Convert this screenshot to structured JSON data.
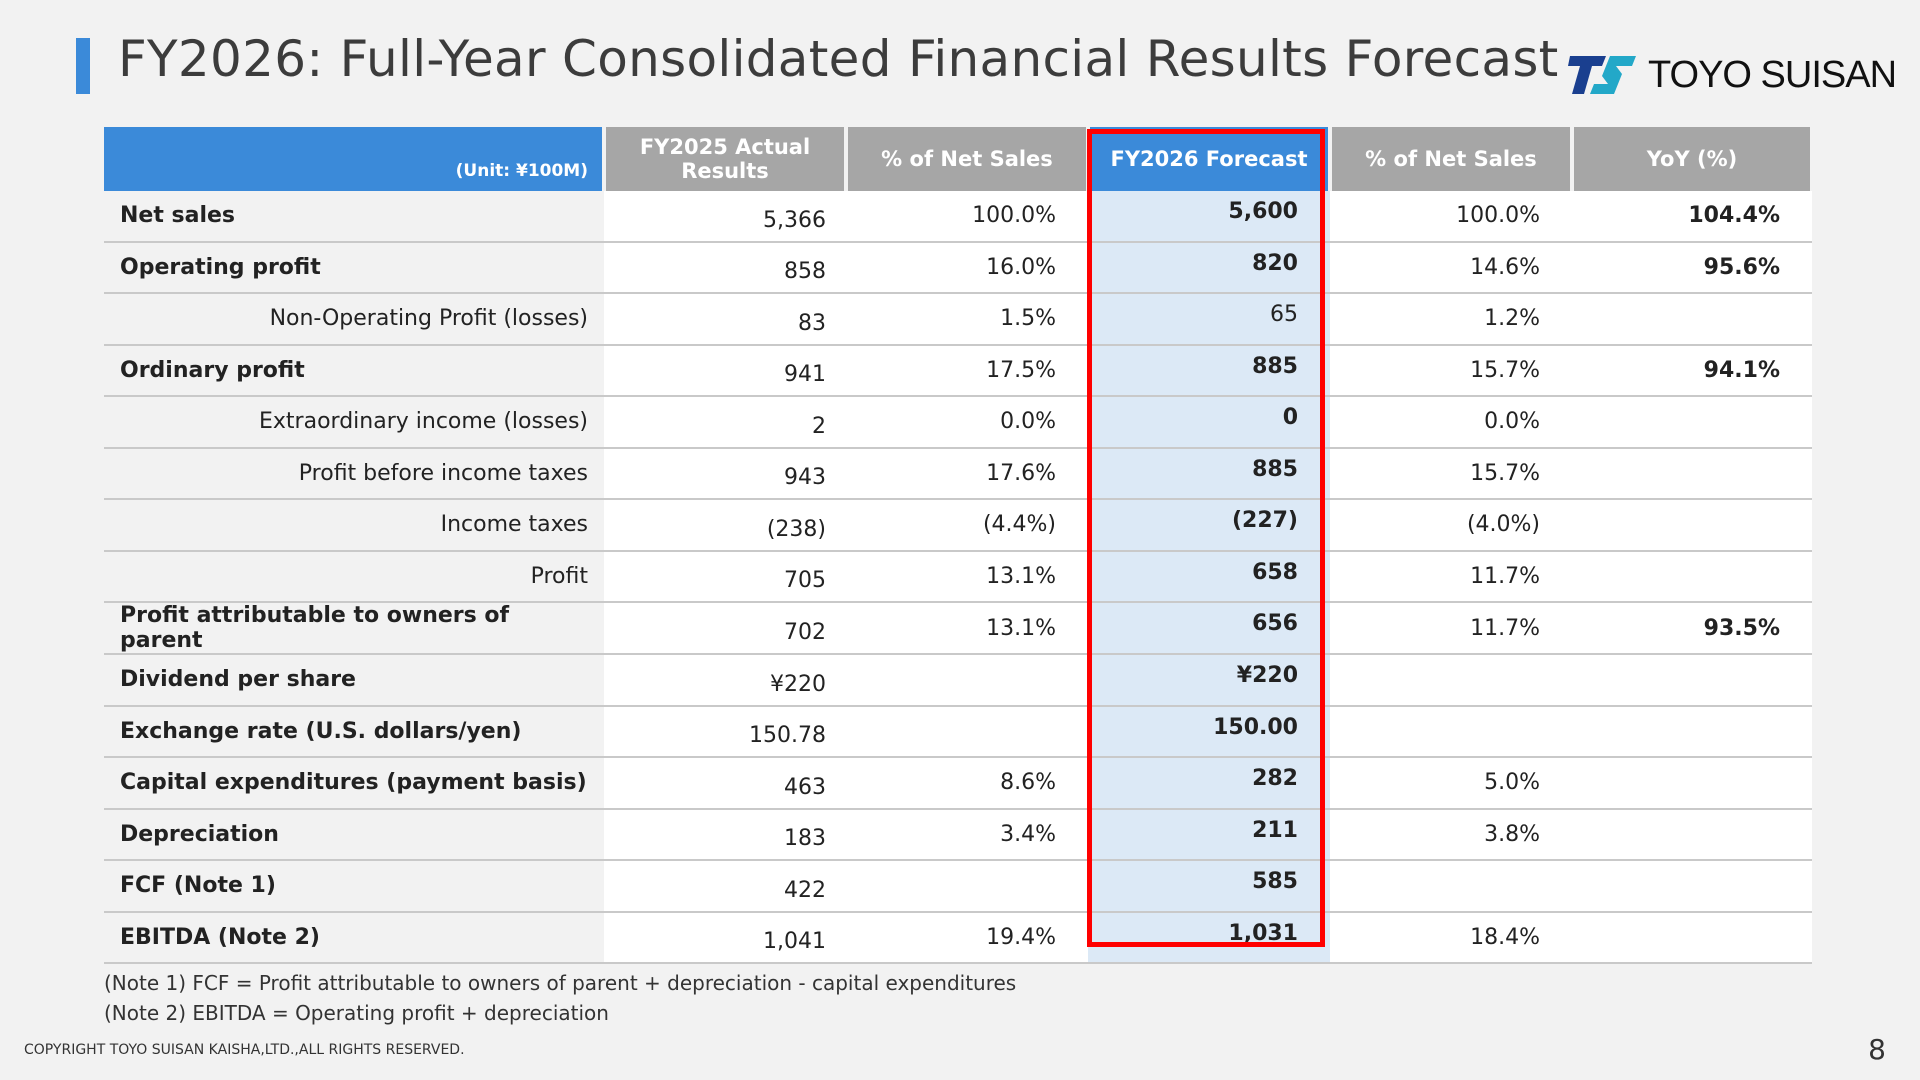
{
  "title": "FY2026: Full-Year Consolidated Financial Results Forecast",
  "logo": {
    "text": "TOYO SUISAN",
    "icon": "ts-logo-icon",
    "colors": [
      "#1a3f8f",
      "#23a8c8"
    ]
  },
  "accent_color": "#3b8ad9",
  "highlight_color": "#ff0000",
  "table": {
    "headers": {
      "unit": "(Unit: ¥100M)",
      "actual": "FY2025 Actual Results",
      "actual_pct": "% of Net Sales",
      "forecast": "FY2026 Forecast",
      "forecast_pct": "% of Net Sales",
      "yoy": "YoY (%)"
    },
    "rows": [
      {
        "label": "Net sales",
        "actual": "5,366",
        "actual_pct": "100.0%",
        "forecast": "5,600",
        "forecast_pct": "100.0%",
        "yoy": "104.4%"
      },
      {
        "label": "Operating profit",
        "actual": "858",
        "actual_pct": "16.0%",
        "forecast": "820",
        "forecast_pct": "14.6%",
        "yoy": "95.6%"
      },
      {
        "label": "Non-Operating Profit (losses)",
        "actual": "83",
        "actual_pct": "1.5%",
        "forecast": "65",
        "forecast_pct": "1.2%",
        "yoy": ""
      },
      {
        "label": "Ordinary profit",
        "actual": "941",
        "actual_pct": "17.5%",
        "forecast": "885",
        "forecast_pct": "15.7%",
        "yoy": "94.1%"
      },
      {
        "label": "Extraordinary income (losses)",
        "actual": "2",
        "actual_pct": "0.0%",
        "forecast": "0",
        "forecast_pct": "0.0%",
        "yoy": ""
      },
      {
        "label": "Profit before income taxes",
        "actual": "943",
        "actual_pct": "17.6%",
        "forecast": "885",
        "forecast_pct": "15.7%",
        "yoy": ""
      },
      {
        "label": "Income taxes",
        "actual": "(238)",
        "actual_pct": "(4.4%)",
        "forecast": "(227)",
        "forecast_pct": "(4.0%)",
        "yoy": ""
      },
      {
        "label": "Profit",
        "actual": "705",
        "actual_pct": "13.1%",
        "forecast": "658",
        "forecast_pct": "11.7%",
        "yoy": ""
      },
      {
        "label": "Profit attributable to owners of parent",
        "actual": "702",
        "actual_pct": "13.1%",
        "forecast": "656",
        "forecast_pct": "11.7%",
        "yoy": "93.5%"
      },
      {
        "label": "Dividend per share",
        "actual": "¥220",
        "actual_pct": "",
        "forecast": "¥220",
        "forecast_pct": "",
        "yoy": ""
      },
      {
        "label": "Exchange rate (U.S. dollars/yen)",
        "actual": "150.78",
        "actual_pct": "",
        "forecast": "150.00",
        "forecast_pct": "",
        "yoy": ""
      },
      {
        "label": "Capital expenditures (payment basis)",
        "actual": "463",
        "actual_pct": "8.6%",
        "forecast": "282",
        "forecast_pct": "5.0%",
        "yoy": ""
      },
      {
        "label": "Depreciation",
        "actual": "183",
        "actual_pct": "3.4%",
        "forecast": "211",
        "forecast_pct": "3.8%",
        "yoy": ""
      },
      {
        "label": "FCF (Note 1)",
        "actual": "422",
        "actual_pct": "",
        "forecast": "585",
        "forecast_pct": "",
        "yoy": ""
      },
      {
        "label": "EBITDA (Note 2)",
        "actual": "1,041",
        "actual_pct": "19.4%",
        "forecast": "1,031",
        "forecast_pct": "18.4%",
        "yoy": ""
      }
    ]
  },
  "notes": [
    "(Note 1) FCF = Profit attributable to owners of parent + depreciation - capital expenditures",
    "(Note 2) EBITDA = Operating profit + depreciation"
  ],
  "copyright": "COPYRIGHT TOYO SUISAN KAISHA,LTD.,ALL RIGHTS RESERVED.",
  "page_number": "8"
}
